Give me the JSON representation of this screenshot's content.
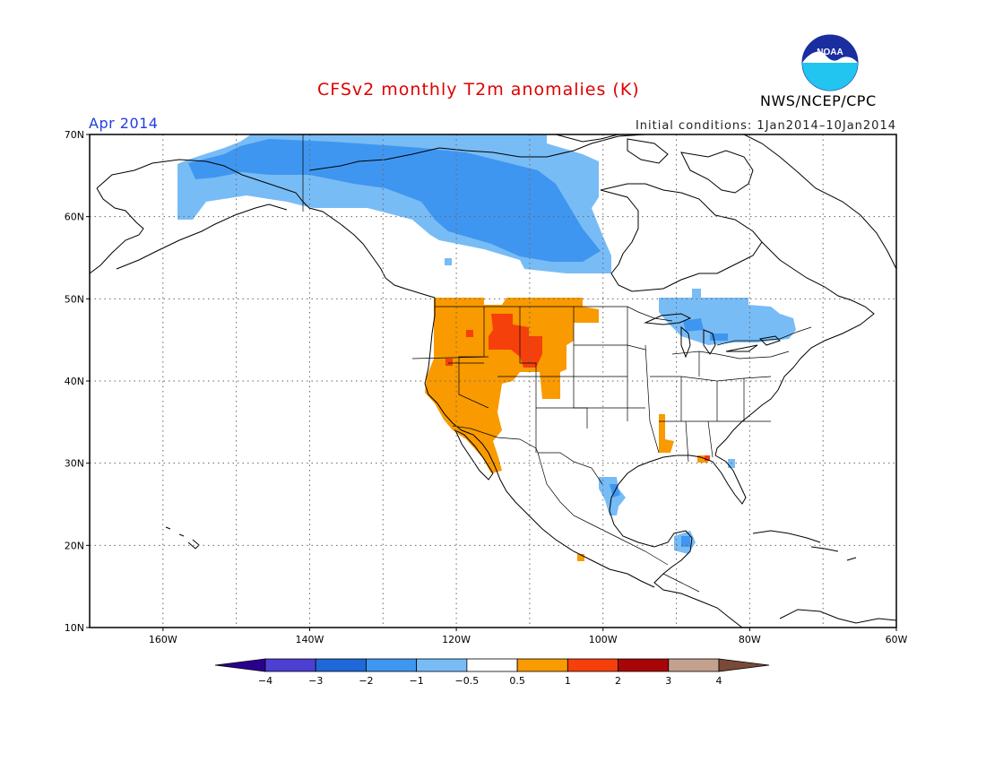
{
  "title": "CFSv2 monthly T2m anomalies (K)",
  "org": "NWS/NCEP/CPC",
  "logo_text": "NOAA",
  "period": "Apr 2014",
  "initial_conditions": "Initial conditions: 1Jan2014–10Jan2014",
  "map": {
    "lon_range": [
      -170,
      -60
    ],
    "lat_range": [
      10,
      70
    ],
    "lon_ticks": [
      {
        "value": -160,
        "label": "160W"
      },
      {
        "value": -140,
        "label": "140W"
      },
      {
        "value": -120,
        "label": "120W"
      },
      {
        "value": -100,
        "label": "100W"
      },
      {
        "value": -80,
        "label": "80W"
      },
      {
        "value": -60,
        "label": "60W"
      }
    ],
    "lat_ticks": [
      {
        "value": 70,
        "label": "70N"
      },
      {
        "value": 60,
        "label": "60N"
      },
      {
        "value": 50,
        "label": "50N"
      },
      {
        "value": 40,
        "label": "40N"
      },
      {
        "value": 30,
        "label": "30N"
      },
      {
        "value": 20,
        "label": "20N"
      },
      {
        "value": 10,
        "label": "10N"
      }
    ],
    "grid": "dotted"
  },
  "colorbar": {
    "labels": [
      "−4",
      "−3",
      "−2",
      "−1",
      "−0.5",
      "0.5",
      "1",
      "2",
      "3",
      "4"
    ],
    "colors": [
      "#2a0090",
      "#4c3fd2",
      "#1e68d8",
      "#3f96f0",
      "#78bcf6",
      "#ffffff",
      "#f89a00",
      "#f5400c",
      "#a80606",
      "#c4a08e",
      "#7a4a38"
    ]
  },
  "colors": {
    "cold1": "#78bcf6",
    "cold2": "#3f96f0",
    "warm1": "#f89a00",
    "warm2": "#f5400c",
    "title": "#e00000",
    "period": "#2040e0"
  }
}
